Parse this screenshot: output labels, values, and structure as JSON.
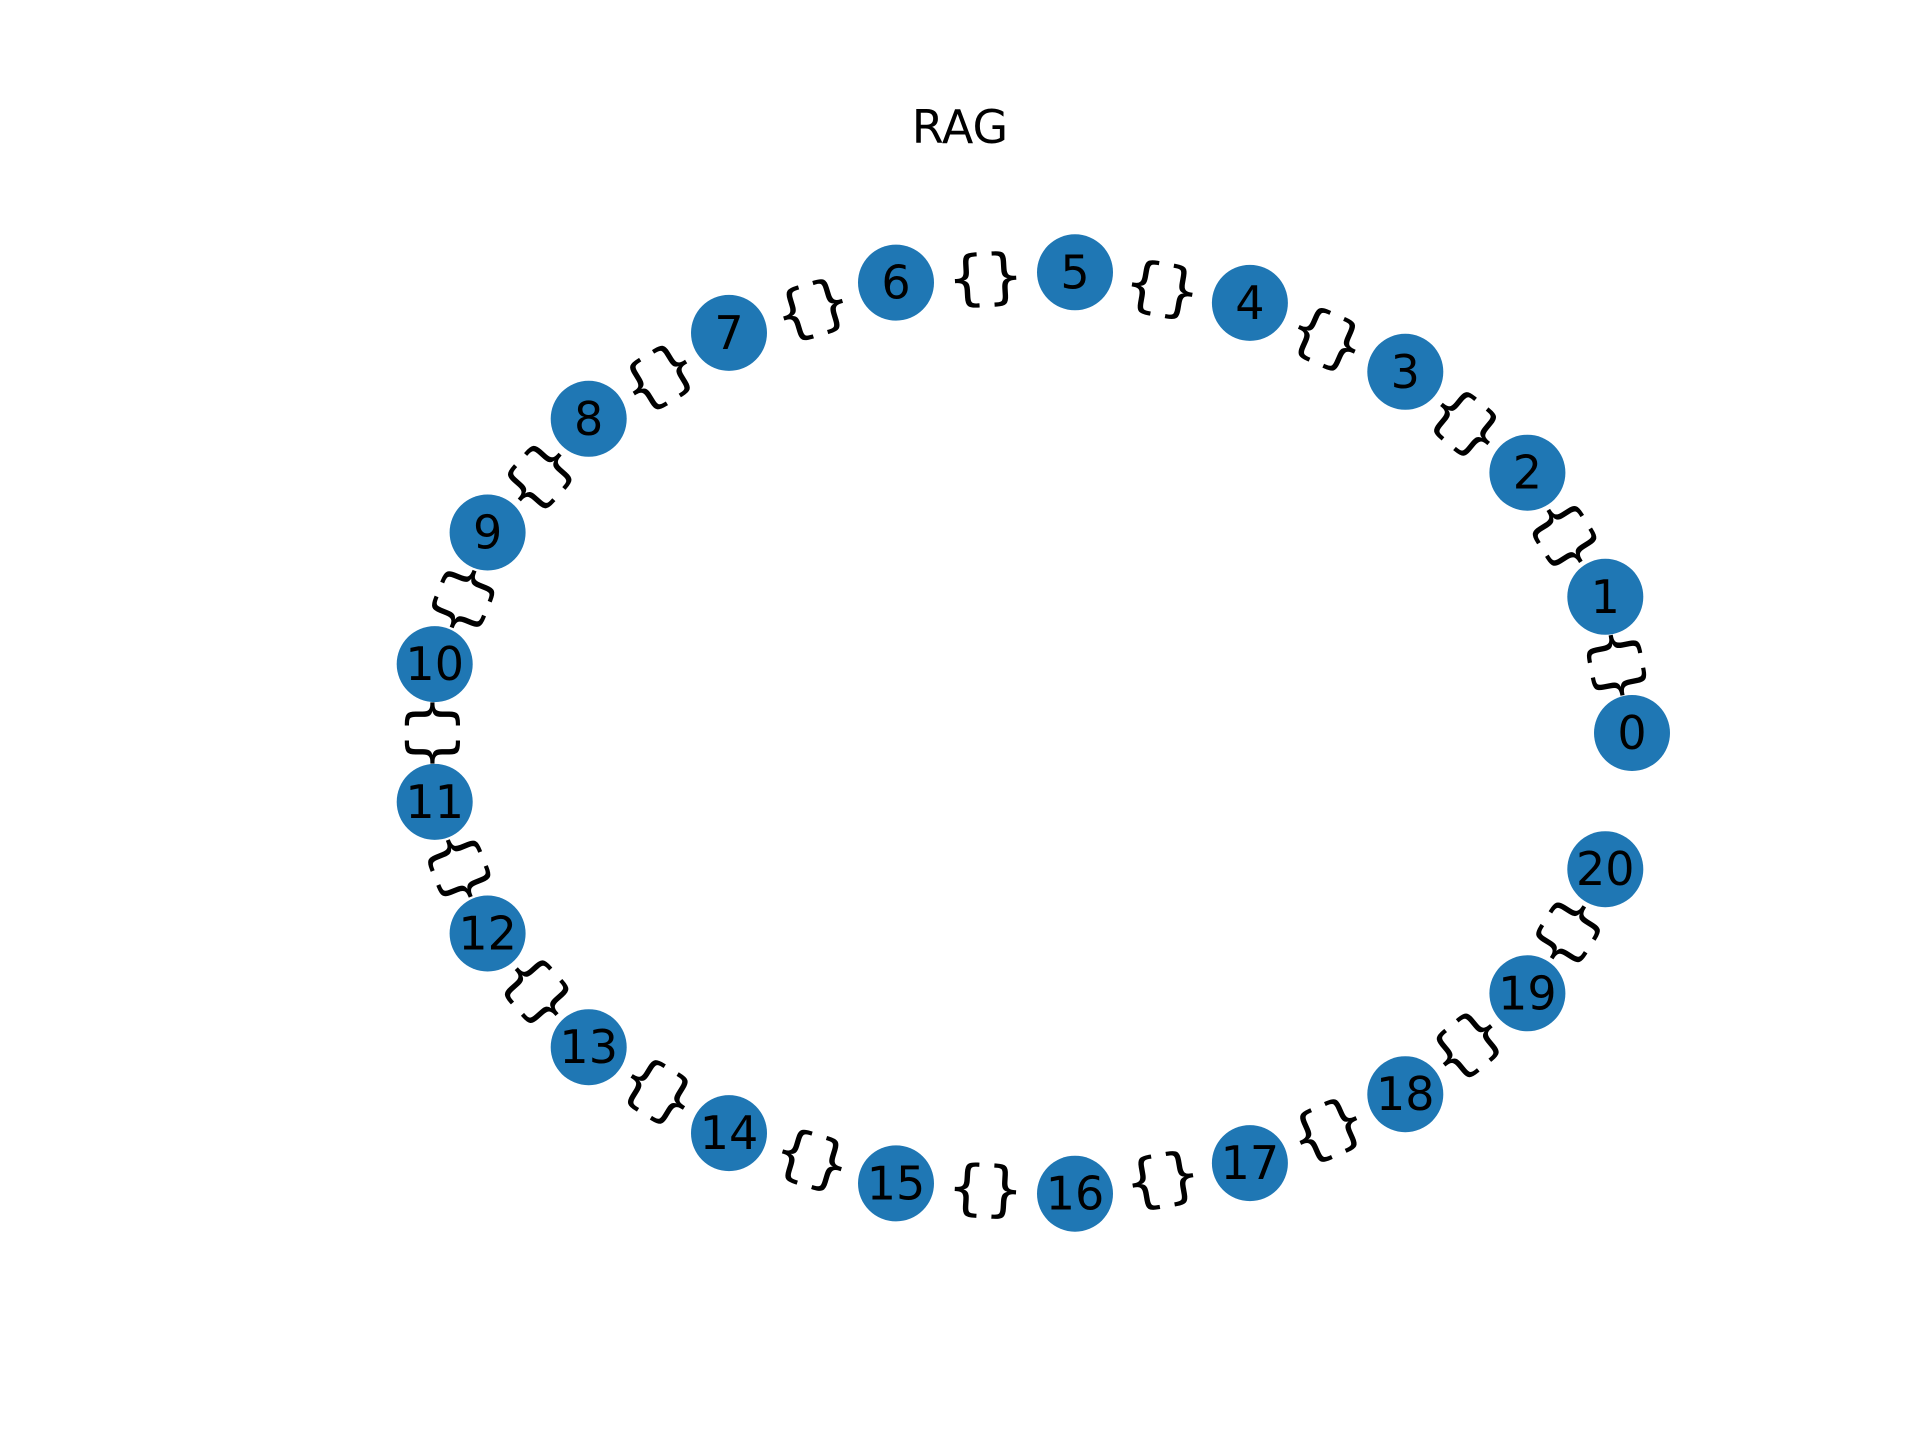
{
  "title": "RAG",
  "node_color": "#1f77b4",
  "label_color": "#000000",
  "nodes": [
    "0",
    "1",
    "2",
    "3",
    "4",
    "5",
    "6",
    "7",
    "8",
    "9",
    "10",
    "11",
    "12",
    "13",
    "14",
    "15",
    "16",
    "17",
    "18",
    "19",
    "20"
  ],
  "edges": [
    {
      "from": "0",
      "to": "1",
      "label": "{}"
    },
    {
      "from": "1",
      "to": "2",
      "label": "{}"
    },
    {
      "from": "2",
      "to": "3",
      "label": "{}"
    },
    {
      "from": "3",
      "to": "4",
      "label": "{}"
    },
    {
      "from": "4",
      "to": "5",
      "label": "{}"
    },
    {
      "from": "5",
      "to": "6",
      "label": "{}"
    },
    {
      "from": "6",
      "to": "7",
      "label": "{}"
    },
    {
      "from": "7",
      "to": "8",
      "label": "{}"
    },
    {
      "from": "8",
      "to": "9",
      "label": "{}"
    },
    {
      "from": "9",
      "to": "10",
      "label": "{}"
    },
    {
      "from": "10",
      "to": "11",
      "label": "{}"
    },
    {
      "from": "11",
      "to": "12",
      "label": "{}"
    },
    {
      "from": "12",
      "to": "13",
      "label": "{}"
    },
    {
      "from": "13",
      "to": "14",
      "label": "{}"
    },
    {
      "from": "14",
      "to": "15",
      "label": "{}"
    },
    {
      "from": "15",
      "to": "16",
      "label": "{}"
    },
    {
      "from": "16",
      "to": "17",
      "label": "{}"
    },
    {
      "from": "17",
      "to": "18",
      "label": "{}"
    },
    {
      "from": "18",
      "to": "19",
      "label": "{}"
    },
    {
      "from": "19",
      "to": "20",
      "label": "{}"
    }
  ]
}
